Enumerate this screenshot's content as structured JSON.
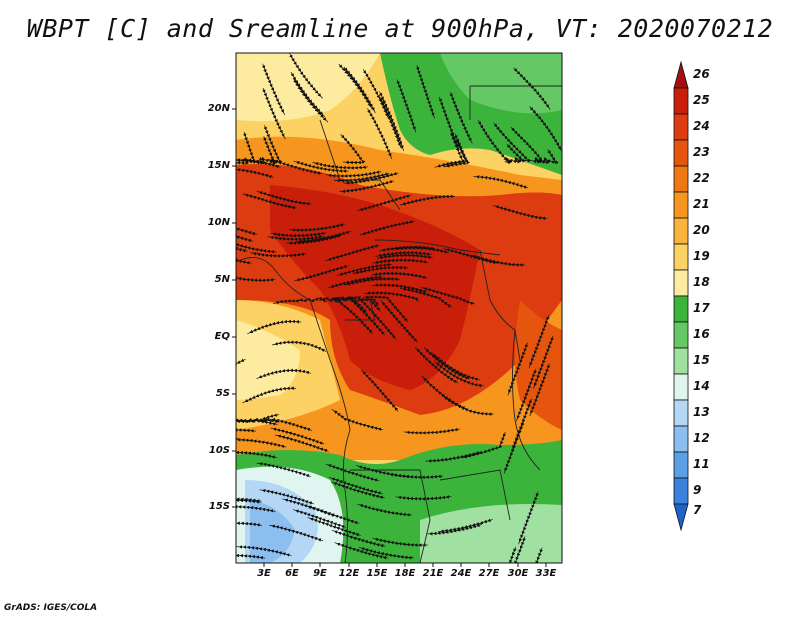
{
  "title": "WBPT [C] and Sreamline at 900hPa, VT: 2020070212",
  "credit": "GrADS: IGES/COLA",
  "lat_ticks": [
    "20N",
    "15N",
    "10N",
    "5N",
    "EQ",
    "5S",
    "10S",
    "15S"
  ],
  "lon_ticks": [
    "3E",
    "6E",
    "9E",
    "12E",
    "15E",
    "18E",
    "21E",
    "24E",
    "27E",
    "30E",
    "33E"
  ],
  "colorbar": {
    "labels": [
      "26",
      "25",
      "24",
      "23",
      "22",
      "21",
      "20",
      "19",
      "18",
      "17",
      "16",
      "15",
      "14",
      "13",
      "12",
      "11",
      "9",
      "7"
    ],
    "colors": [
      "#a50f0f",
      "#c81e0a",
      "#dc3c0f",
      "#e6550d",
      "#f07814",
      "#f7961e",
      "#fab43c",
      "#fcd264",
      "#fdeca0",
      "#3cb43c",
      "#64c864",
      "#a0e0a0",
      "#e0f5f0",
      "#b4d7f5",
      "#8cbef0",
      "#5aa0e6",
      "#3c82dc",
      "#1e64c8"
    ]
  },
  "map": {
    "projection": "lat-lon",
    "lon_range": [
      "0E",
      "35E"
    ],
    "lat_range": [
      "20S",
      "24N"
    ],
    "field": "wet-bulb potential temperature",
    "overlay": "streamlines"
  }
}
